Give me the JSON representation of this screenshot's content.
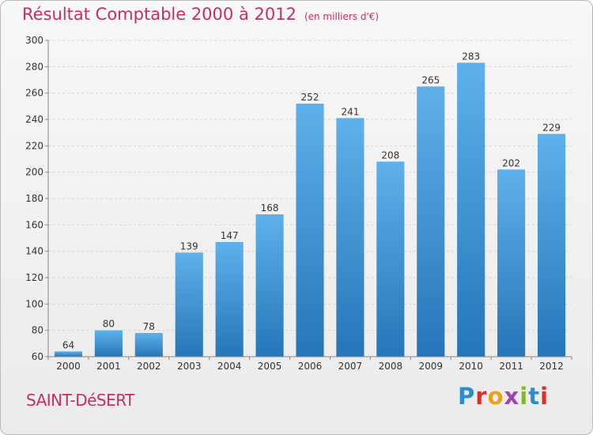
{
  "header": {
    "title": "Résultat Comptable 2000 à 2012",
    "subtitle": "(en milliers d'€)"
  },
  "footer": {
    "place": "SAINT-DéSERT",
    "logo": "Proxiti"
  },
  "colors": {
    "title": "#c42f5e",
    "bar_top": "#5eb1ea",
    "bar_bottom": "#2576b9",
    "grid": "#d6d6d6"
  },
  "chart_data": {
    "type": "bar",
    "categories": [
      "2000",
      "2001",
      "2002",
      "2003",
      "2004",
      "2005",
      "2006",
      "2007",
      "2008",
      "2009",
      "2010",
      "2011",
      "2012"
    ],
    "values": [
      64,
      80,
      78,
      139,
      147,
      168,
      252,
      241,
      208,
      265,
      283,
      202,
      229
    ],
    "ylim": [
      60,
      300
    ],
    "yticks": [
      60,
      80,
      100,
      120,
      140,
      160,
      180,
      200,
      220,
      240,
      260,
      280,
      300
    ],
    "grid": true,
    "data_labels": true
  }
}
